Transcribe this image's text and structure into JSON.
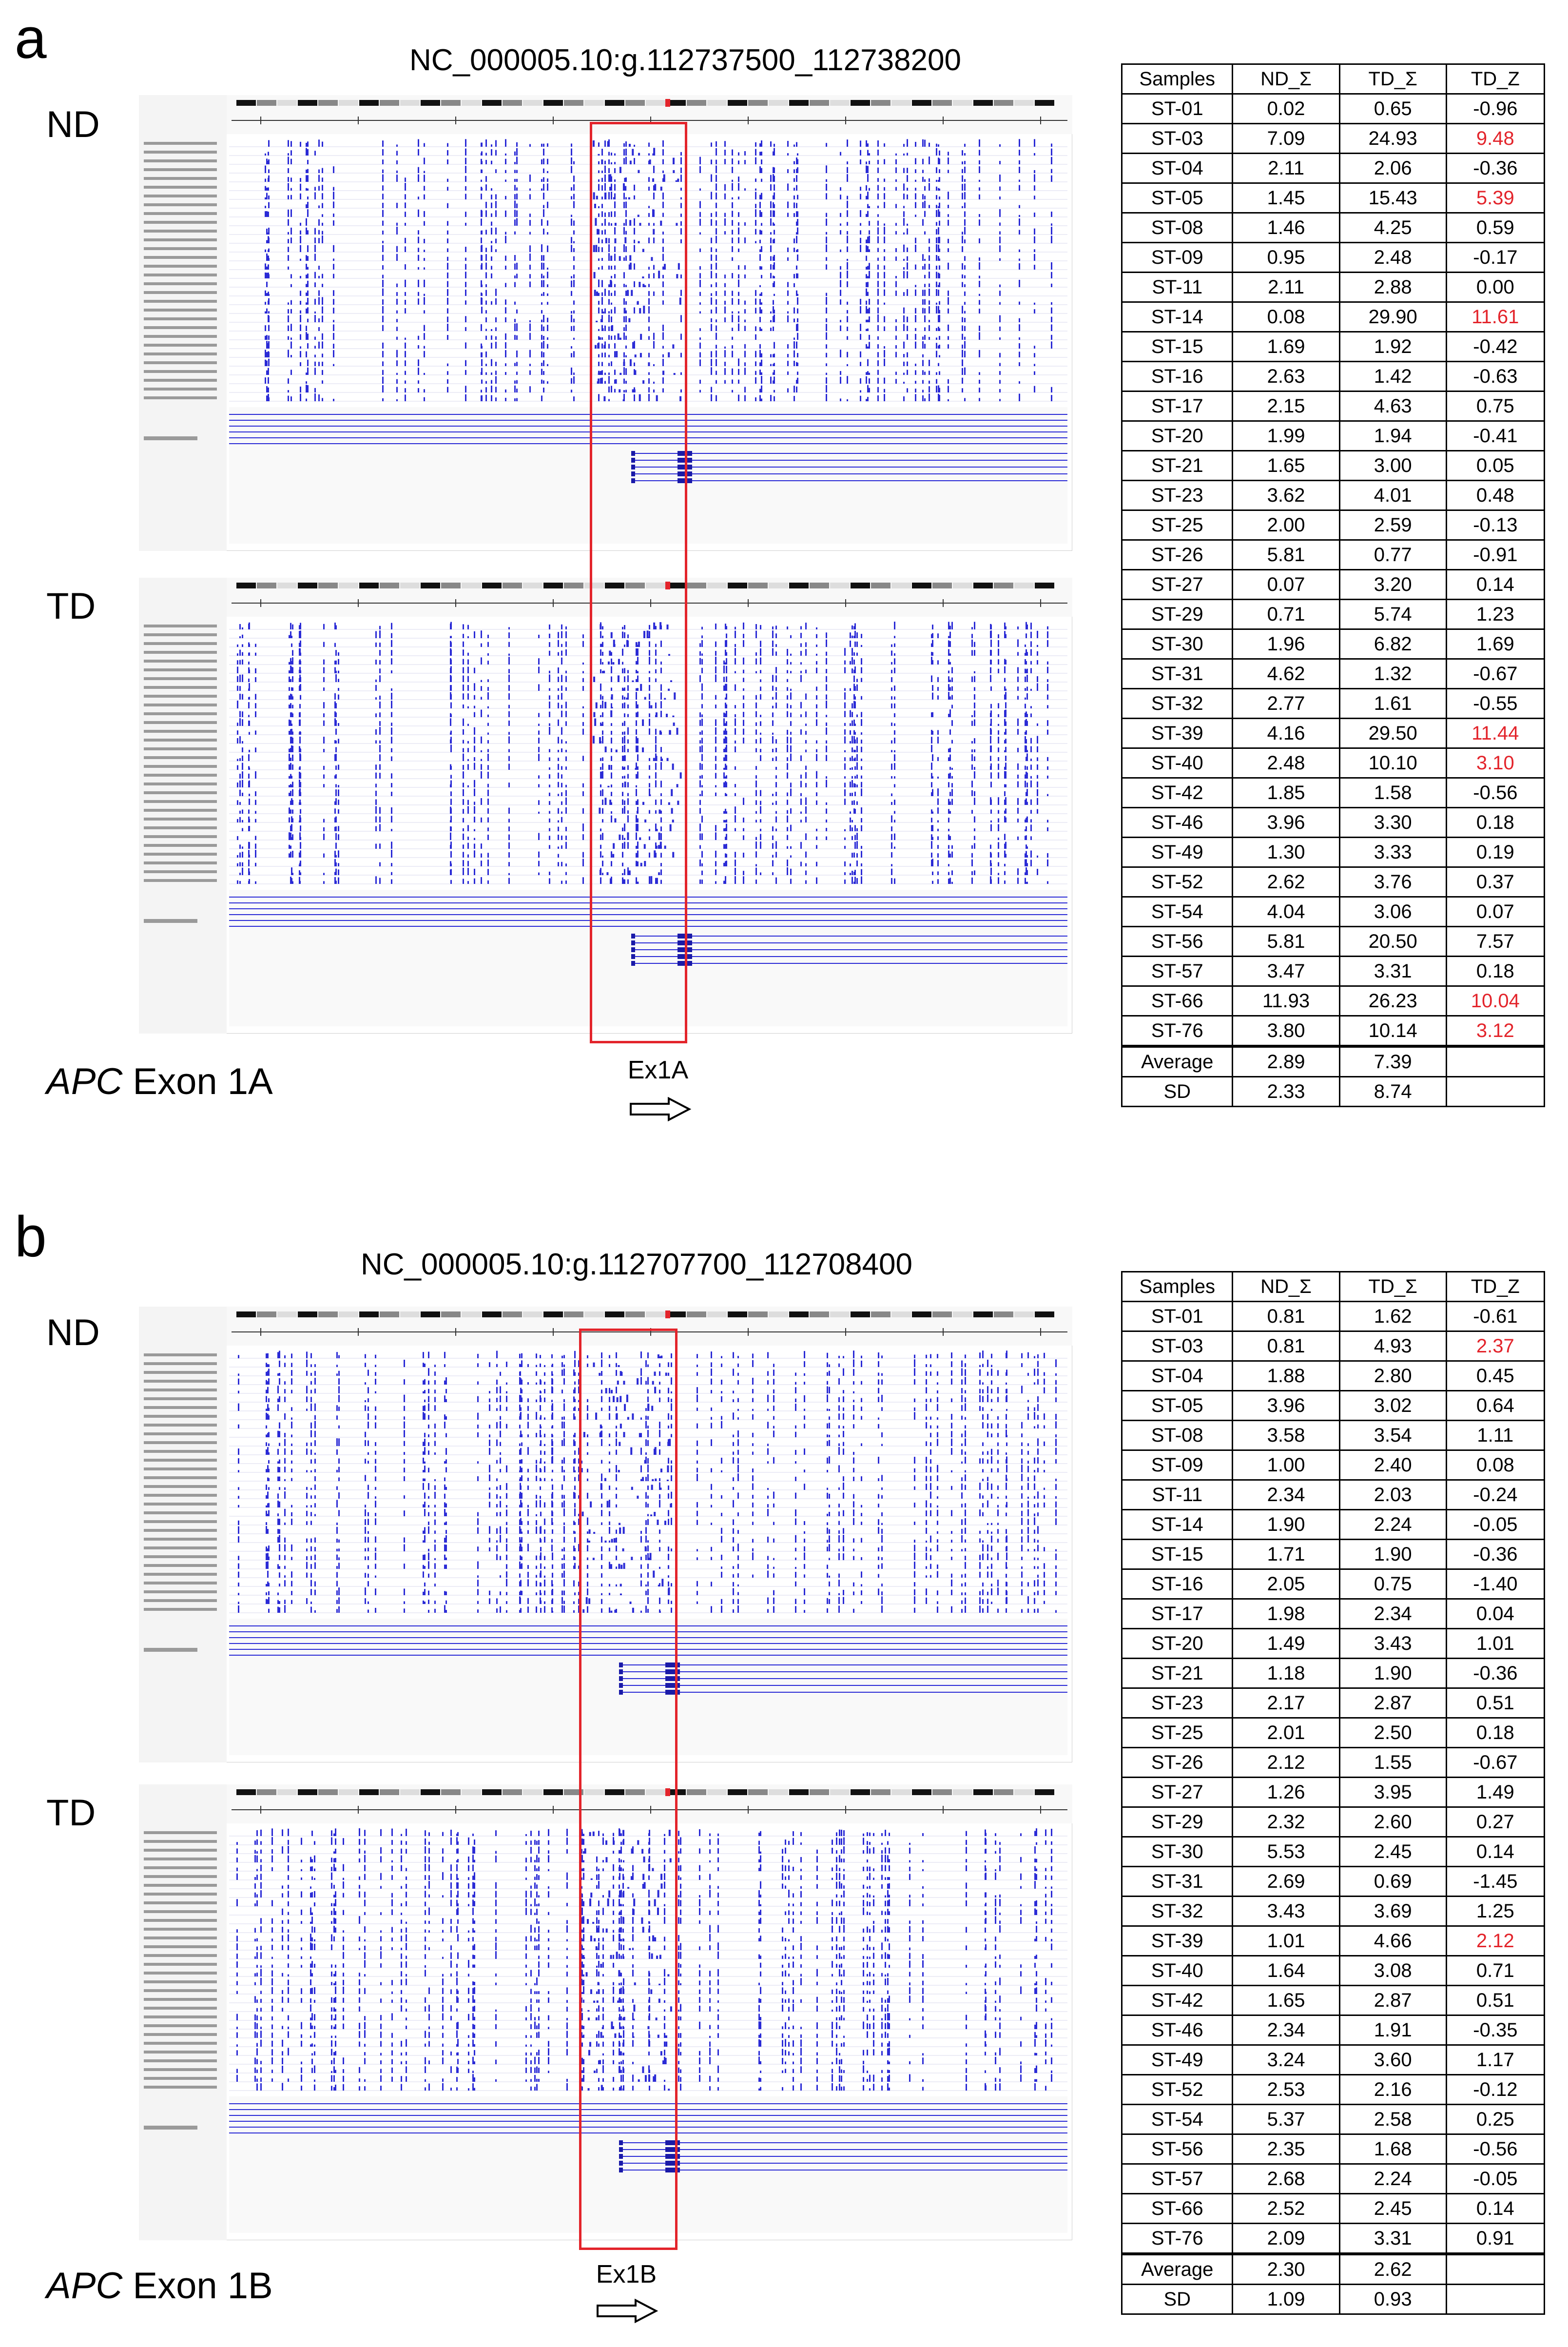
{
  "panels": [
    {
      "letter": "a",
      "title": "NC_000005.10:g.112737500_112738200",
      "labels": {
        "nd": "ND",
        "td": "TD"
      },
      "gene": "APC",
      "exon_text": "Exon 1A",
      "exon_tag": "Ex1A",
      "highlight_color": "#e3242b",
      "table": {
        "headers": [
          "Samples",
          "ND_Σ",
          "TD_Σ",
          "TD_Z"
        ],
        "rows": [
          [
            "ST-01",
            "0.02",
            "0.65",
            "-0.96"
          ],
          [
            "ST-03",
            "7.09",
            "24.93",
            "9.48"
          ],
          [
            "ST-04",
            "2.11",
            "2.06",
            "-0.36"
          ],
          [
            "ST-05",
            "1.45",
            "15.43",
            "5.39"
          ],
          [
            "ST-08",
            "1.46",
            "4.25",
            "0.59"
          ],
          [
            "ST-09",
            "0.95",
            "2.48",
            "-0.17"
          ],
          [
            "ST-11",
            "2.11",
            "2.88",
            "0.00"
          ],
          [
            "ST-14",
            "0.08",
            "29.90",
            "11.61"
          ],
          [
            "ST-15",
            "1.69",
            "1.92",
            "-0.42"
          ],
          [
            "ST-16",
            "2.63",
            "1.42",
            "-0.63"
          ],
          [
            "ST-17",
            "2.15",
            "4.63",
            "0.75"
          ],
          [
            "ST-20",
            "1.99",
            "1.94",
            "-0.41"
          ],
          [
            "ST-21",
            "1.65",
            "3.00",
            "0.05"
          ],
          [
            "ST-23",
            "3.62",
            "4.01",
            "0.48"
          ],
          [
            "ST-25",
            "2.00",
            "2.59",
            "-0.13"
          ],
          [
            "ST-26",
            "5.81",
            "0.77",
            "-0.91"
          ],
          [
            "ST-27",
            "0.07",
            "3.20",
            "0.14"
          ],
          [
            "ST-29",
            "0.71",
            "5.74",
            "1.23"
          ],
          [
            "ST-30",
            "1.96",
            "6.82",
            "1.69"
          ],
          [
            "ST-31",
            "4.62",
            "1.32",
            "-0.67"
          ],
          [
            "ST-32",
            "2.77",
            "1.61",
            "-0.55"
          ],
          [
            "ST-39",
            "4.16",
            "29.50",
            "11.44"
          ],
          [
            "ST-40",
            "2.48",
            "10.10",
            "3.10"
          ],
          [
            "ST-42",
            "1.85",
            "1.58",
            "-0.56"
          ],
          [
            "ST-46",
            "3.96",
            "3.30",
            "0.18"
          ],
          [
            "ST-49",
            "1.30",
            "3.33",
            "0.19"
          ],
          [
            "ST-52",
            "2.62",
            "3.76",
            "0.37"
          ],
          [
            "ST-54",
            "4.04",
            "3.06",
            "0.07"
          ],
          [
            "ST-56",
            "5.81",
            "20.50",
            "7.57"
          ],
          [
            "ST-57",
            "3.47",
            "3.31",
            "0.18"
          ],
          [
            "ST-66",
            "11.93",
            "26.23",
            "10.04"
          ],
          [
            "ST-76",
            "3.80",
            "10.14",
            "3.12"
          ]
        ],
        "highlighted_samples": [
          "ST-03",
          "ST-05",
          "ST-14",
          "ST-39",
          "ST-40",
          "ST-66",
          "ST-76"
        ],
        "summary": [
          [
            "Average",
            "2.89",
            "7.39",
            ""
          ],
          [
            "SD",
            "2.33",
            "8.74",
            ""
          ]
        ]
      }
    },
    {
      "letter": "b",
      "title": "NC_000005.10:g.112707700_112708400",
      "labels": {
        "nd": "ND",
        "td": "TD"
      },
      "gene": "APC",
      "exon_text": "Exon 1B",
      "exon_tag": "Ex1B",
      "highlight_color": "#e3242b",
      "table": {
        "headers": [
          "Samples",
          "ND_Σ",
          "TD_Σ",
          "TD_Z"
        ],
        "rows": [
          [
            "ST-01",
            "0.81",
            "1.62",
            "-0.61"
          ],
          [
            "ST-03",
            "0.81",
            "4.93",
            "2.37"
          ],
          [
            "ST-04",
            "1.88",
            "2.80",
            "0.45"
          ],
          [
            "ST-05",
            "3.96",
            "3.02",
            "0.64"
          ],
          [
            "ST-08",
            "3.58",
            "3.54",
            "1.11"
          ],
          [
            "ST-09",
            "1.00",
            "2.40",
            "0.08"
          ],
          [
            "ST-11",
            "2.34",
            "2.03",
            "-0.24"
          ],
          [
            "ST-14",
            "1.90",
            "2.24",
            "-0.05"
          ],
          [
            "ST-15",
            "1.71",
            "1.90",
            "-0.36"
          ],
          [
            "ST-16",
            "2.05",
            "0.75",
            "-1.40"
          ],
          [
            "ST-17",
            "1.98",
            "2.34",
            "0.04"
          ],
          [
            "ST-20",
            "1.49",
            "3.43",
            "1.01"
          ],
          [
            "ST-21",
            "1.18",
            "1.90",
            "-0.36"
          ],
          [
            "ST-23",
            "2.17",
            "2.87",
            "0.51"
          ],
          [
            "ST-25",
            "2.01",
            "2.50",
            "0.18"
          ],
          [
            "ST-26",
            "2.12",
            "1.55",
            "-0.67"
          ],
          [
            "ST-27",
            "1.26",
            "3.95",
            "1.49"
          ],
          [
            "ST-29",
            "2.32",
            "2.60",
            "0.27"
          ],
          [
            "ST-30",
            "5.53",
            "2.45",
            "0.14"
          ],
          [
            "ST-31",
            "2.69",
            "0.69",
            "-1.45"
          ],
          [
            "ST-32",
            "3.43",
            "3.69",
            "1.25"
          ],
          [
            "ST-39",
            "1.01",
            "4.66",
            "2.12"
          ],
          [
            "ST-40",
            "1.64",
            "3.08",
            "0.71"
          ],
          [
            "ST-42",
            "1.65",
            "2.87",
            "0.51"
          ],
          [
            "ST-46",
            "2.34",
            "1.91",
            "-0.35"
          ],
          [
            "ST-49",
            "3.24",
            "3.60",
            "1.17"
          ],
          [
            "ST-52",
            "2.53",
            "2.16",
            "-0.12"
          ],
          [
            "ST-54",
            "5.37",
            "2.58",
            "0.25"
          ],
          [
            "ST-56",
            "2.35",
            "1.68",
            "-0.56"
          ],
          [
            "ST-57",
            "2.68",
            "2.24",
            "-0.05"
          ],
          [
            "ST-66",
            "2.52",
            "2.45",
            "0.14"
          ],
          [
            "ST-76",
            "2.09",
            "3.31",
            "0.91"
          ]
        ],
        "highlighted_samples": [
          "ST-03",
          "ST-39"
        ],
        "summary": [
          [
            "Average",
            "2.30",
            "2.62",
            ""
          ],
          [
            "SD",
            "1.09",
            "0.93",
            ""
          ]
        ]
      }
    }
  ]
}
